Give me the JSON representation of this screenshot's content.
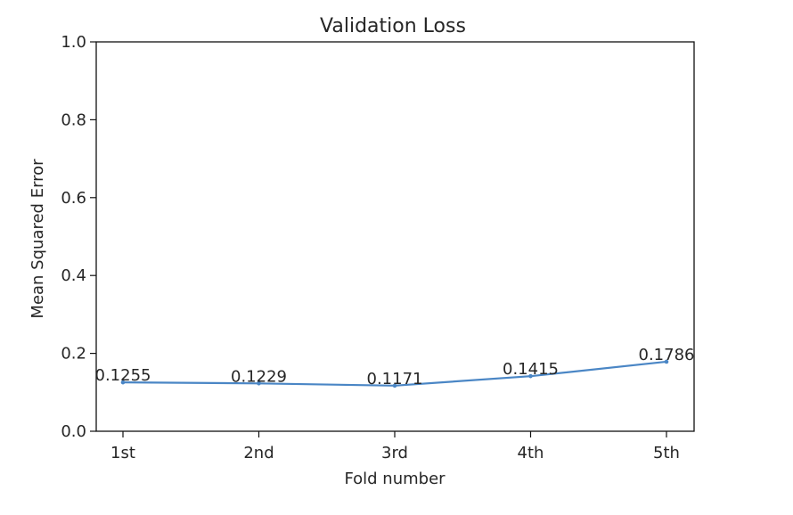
{
  "chart_data": {
    "type": "line",
    "title": "Validation Loss",
    "xlabel": "Fold number",
    "ylabel": "Mean Squared Error",
    "categories": [
      "1st",
      "2nd",
      "3rd",
      "4th",
      "5th"
    ],
    "series": [
      {
        "values": [
          0.1255,
          0.1229,
          0.1171,
          0.1415,
          0.1786
        ],
        "color": "#4a86c5"
      }
    ],
    "data_labels": [
      "0.1255",
      "0.1229",
      "0.1171",
      "0.1415",
      "0.1786"
    ],
    "ylim": [
      0.0,
      1.0
    ],
    "yticks": [
      0.0,
      0.2,
      0.4,
      0.6,
      0.8,
      1.0
    ],
    "ytick_labels": [
      "0.0",
      "0.2",
      "0.4",
      "0.6",
      "0.8",
      "1.0"
    ],
    "grid": false,
    "legend": "none"
  }
}
